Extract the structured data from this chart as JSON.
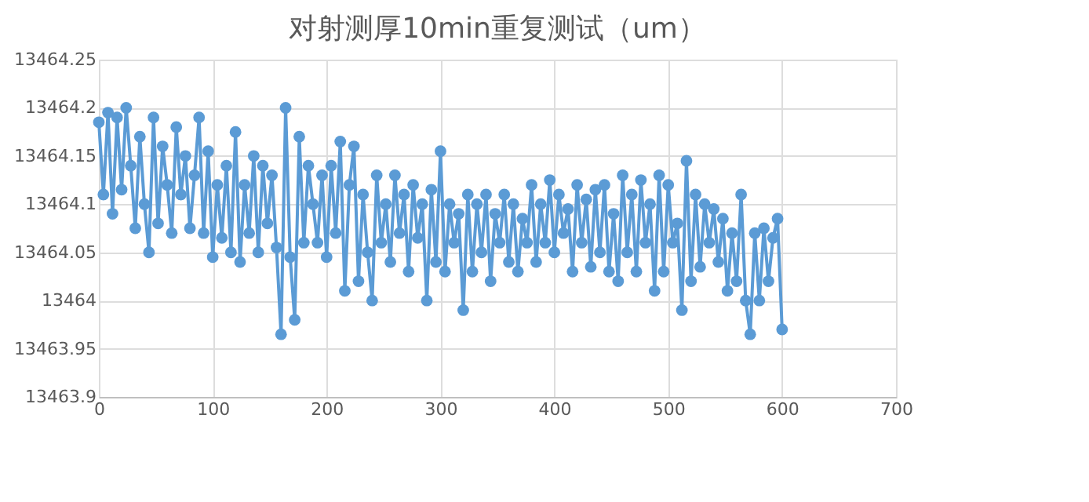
{
  "chart_data": {
    "type": "line",
    "title": "对射测厚10min重复测试（um）",
    "x": [
      0,
      4,
      8,
      12,
      16,
      20,
      24,
      28,
      32,
      36,
      40,
      44,
      48,
      52,
      56,
      60,
      64,
      68,
      72,
      76,
      80,
      84,
      88,
      92,
      96,
      100,
      104,
      108,
      112,
      116,
      120,
      124,
      128,
      132,
      136,
      140,
      144,
      148,
      152,
      156,
      160,
      164,
      168,
      172,
      176,
      180,
      184,
      188,
      192,
      196,
      200,
      204,
      208,
      212,
      216,
      220,
      224,
      228,
      232,
      236,
      240,
      244,
      248,
      252,
      256,
      260,
      264,
      268,
      272,
      276,
      280,
      284,
      288,
      292,
      296,
      300,
      304,
      308,
      312,
      316,
      320,
      324,
      328,
      332,
      336,
      340,
      344,
      348,
      352,
      356,
      360,
      364,
      368,
      372,
      376,
      380,
      384,
      388,
      392,
      396,
      400,
      404,
      408,
      412,
      416,
      420,
      424,
      428,
      432,
      436,
      440,
      444,
      448,
      452,
      456,
      460,
      464,
      468,
      472,
      476,
      480,
      484,
      488,
      492,
      496,
      500,
      504,
      508,
      512,
      516,
      520,
      524,
      528,
      532,
      536,
      540,
      544,
      548,
      552,
      556,
      560,
      564,
      568,
      572,
      576,
      580,
      584,
      588,
      592,
      596,
      600
    ],
    "series": [
      {
        "color": "#5b9bd5",
        "values": [
          13464.185,
          13464.11,
          13464.195,
          13464.09,
          13464.19,
          13464.115,
          13464.2,
          13464.14,
          13464.075,
          13464.17,
          13464.1,
          13464.05,
          13464.19,
          13464.08,
          13464.16,
          13464.12,
          13464.07,
          13464.18,
          13464.11,
          13464.15,
          13464.075,
          13464.13,
          13464.19,
          13464.07,
          13464.155,
          13464.045,
          13464.12,
          13464.065,
          13464.14,
          13464.05,
          13464.175,
          13464.04,
          13464.12,
          13464.07,
          13464.15,
          13464.05,
          13464.14,
          13464.08,
          13464.13,
          13464.055,
          13463.965,
          13464.2,
          13464.045,
          13463.98,
          13464.17,
          13464.06,
          13464.14,
          13464.1,
          13464.06,
          13464.13,
          13464.045,
          13464.14,
          13464.07,
          13464.165,
          13464.01,
          13464.12,
          13464.16,
          13464.02,
          13464.11,
          13464.05,
          13464.0,
          13464.13,
          13464.06,
          13464.1,
          13464.04,
          13464.13,
          13464.07,
          13464.11,
          13464.03,
          13464.12,
          13464.065,
          13464.1,
          13464.0,
          13464.115,
          13464.04,
          13464.155,
          13464.03,
          13464.1,
          13464.06,
          13464.09,
          13463.99,
          13464.11,
          13464.03,
          13464.1,
          13464.05,
          13464.11,
          13464.02,
          13464.09,
          13464.06,
          13464.11,
          13464.04,
          13464.1,
          13464.03,
          13464.085,
          13464.06,
          13464.12,
          13464.04,
          13464.1,
          13464.06,
          13464.125,
          13464.05,
          13464.11,
          13464.07,
          13464.095,
          13464.03,
          13464.12,
          13464.06,
          13464.105,
          13464.035,
          13464.115,
          13464.05,
          13464.12,
          13464.03,
          13464.09,
          13464.02,
          13464.13,
          13464.05,
          13464.11,
          13464.03,
          13464.125,
          13464.06,
          13464.1,
          13464.01,
          13464.13,
          13464.03,
          13464.12,
          13464.06,
          13464.08,
          13463.99,
          13464.145,
          13464.02,
          13464.11,
          13464.035,
          13464.1,
          13464.06,
          13464.095,
          13464.04,
          13464.085,
          13464.01,
          13464.07,
          13464.02,
          13464.11,
          13464.0,
          13463.965,
          13464.07,
          13464.0,
          13464.075,
          13464.02,
          13464.065,
          13464.085,
          13463.97
        ]
      }
    ],
    "xlim": [
      0,
      700
    ],
    "xticks": [
      0,
      100,
      200,
      300,
      400,
      500,
      600,
      700
    ],
    "ylim": [
      13463.9,
      13464.25
    ],
    "yticks": [
      13463.9,
      13463.95,
      13464,
      13464.05,
      13464.1,
      13464.15,
      13464.2,
      13464.25
    ],
    "grid": true,
    "marker": "circle",
    "line_style": "solid"
  }
}
